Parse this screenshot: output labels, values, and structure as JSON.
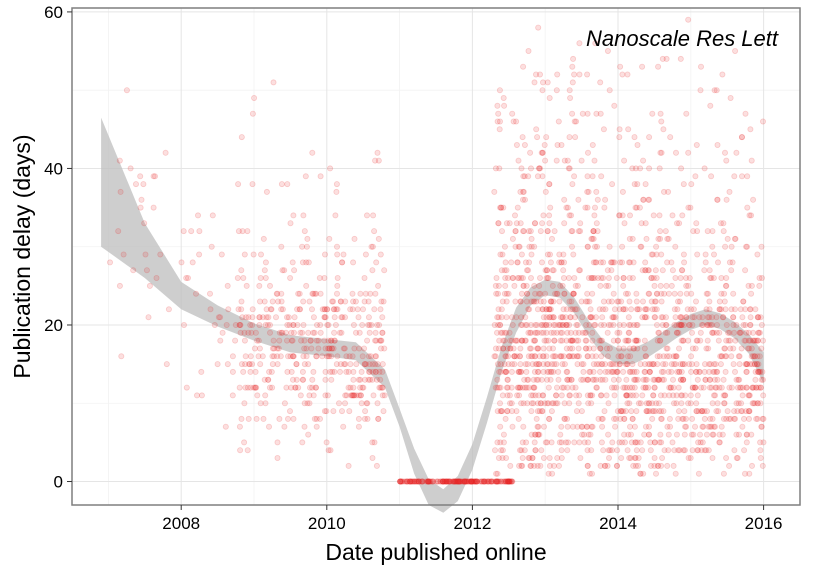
{
  "chart_data": {
    "type": "scatter",
    "title": "",
    "annotation": "Nanoscale Res Lett",
    "xlabel": "Date published online",
    "ylabel": "Publication delay (days)",
    "xlim": [
      2006.5,
      2016.5
    ],
    "ylim": [
      -3,
      60.5
    ],
    "x_ticks": [
      2008,
      2010,
      2012,
      2014,
      2016
    ],
    "x_tick_labels": [
      "2008",
      "2010",
      "2012",
      "2014",
      "2016"
    ],
    "y_ticks": [
      0,
      20,
      40,
      60
    ],
    "y_tick_labels": [
      "0",
      "20",
      "40",
      "60"
    ],
    "grid": true,
    "legend": "none",
    "point_color": "#e8262a",
    "point_opacity": 0.15,
    "band_color": "#bdbdbd",
    "smooth": {
      "x": [
        2006.9,
        2007.5,
        2008.0,
        2008.5,
        2009.0,
        2009.5,
        2010.0,
        2010.4,
        2010.8,
        2011.0,
        2011.2,
        2011.4,
        2011.6,
        2011.8,
        2012.0,
        2012.2,
        2012.4,
        2012.6,
        2012.8,
        2013.0,
        2013.2,
        2013.4,
        2013.6,
        2013.8,
        2014.0,
        2014.2,
        2014.4,
        2014.6,
        2014.8,
        2015.0,
        2015.2,
        2015.4,
        2015.6,
        2015.8,
        2016.0
      ],
      "fit": [
        38,
        29,
        23.5,
        21,
        19,
        17.5,
        17,
        16.5,
        13,
        8,
        2.5,
        -1.5,
        -2.5,
        -1,
        3,
        9,
        15.5,
        20.5,
        23.5,
        24.8,
        24.5,
        22.5,
        19.5,
        17,
        16,
        16,
        16.8,
        18,
        19.3,
        20.4,
        21,
        20.5,
        19.3,
        17.5,
        14.5
      ],
      "lower": [
        30,
        26,
        22,
        19.8,
        18,
        16.5,
        16,
        15.5,
        12,
        7,
        1,
        -3,
        -4,
        -2.5,
        1.5,
        7.5,
        14,
        19,
        22.5,
        23.8,
        23.5,
        21.5,
        18.5,
        16,
        15,
        15,
        15.8,
        17,
        18.3,
        19.4,
        20,
        19.5,
        18.3,
        16.3,
        12.5
      ],
      "upper": [
        46.5,
        33,
        25.5,
        22.5,
        20.2,
        18.7,
        18.2,
        17.8,
        14.3,
        9.3,
        4.2,
        0.3,
        -1,
        0.7,
        4.8,
        10.8,
        17.2,
        22.2,
        24.8,
        25.8,
        25.5,
        23.5,
        20.5,
        18,
        17,
        17,
        17.8,
        19,
        20.3,
        21.4,
        22,
        21.5,
        20.4,
        18.8,
        16.5
      ]
    },
    "point_clusters": [
      {
        "x_range": [
          2006.9,
          2008.0
        ],
        "y_mean": 30,
        "y_sd": 9,
        "n": 28
      },
      {
        "x_range": [
          2008.0,
          2008.8
        ],
        "y_mean": 22,
        "y_sd": 7,
        "n": 40
      },
      {
        "x_range": [
          2008.8,
          2010.8
        ],
        "y_mean": 17,
        "y_sd": 6,
        "n": 430
      },
      {
        "x_range": [
          2008.8,
          2010.8
        ],
        "y_mean": 32,
        "y_sd": 8,
        "n": 45
      },
      {
        "x_range": [
          2011.0,
          2012.55
        ],
        "y_mean": 0,
        "y_sd": 0,
        "n": 200
      },
      {
        "x_range": [
          2012.3,
          2014.6
        ],
        "y_mean": 16,
        "y_sd": 8,
        "n": 950
      },
      {
        "x_range": [
          2012.3,
          2014.6
        ],
        "y_mean": 38,
        "y_sd": 9,
        "n": 230
      },
      {
        "x_range": [
          2014.6,
          2016.0
        ],
        "y_mean": 15,
        "y_sd": 7,
        "n": 480
      },
      {
        "x_range": [
          2014.6,
          2016.0
        ],
        "y_mean": 36,
        "y_sd": 10,
        "n": 90
      }
    ]
  }
}
